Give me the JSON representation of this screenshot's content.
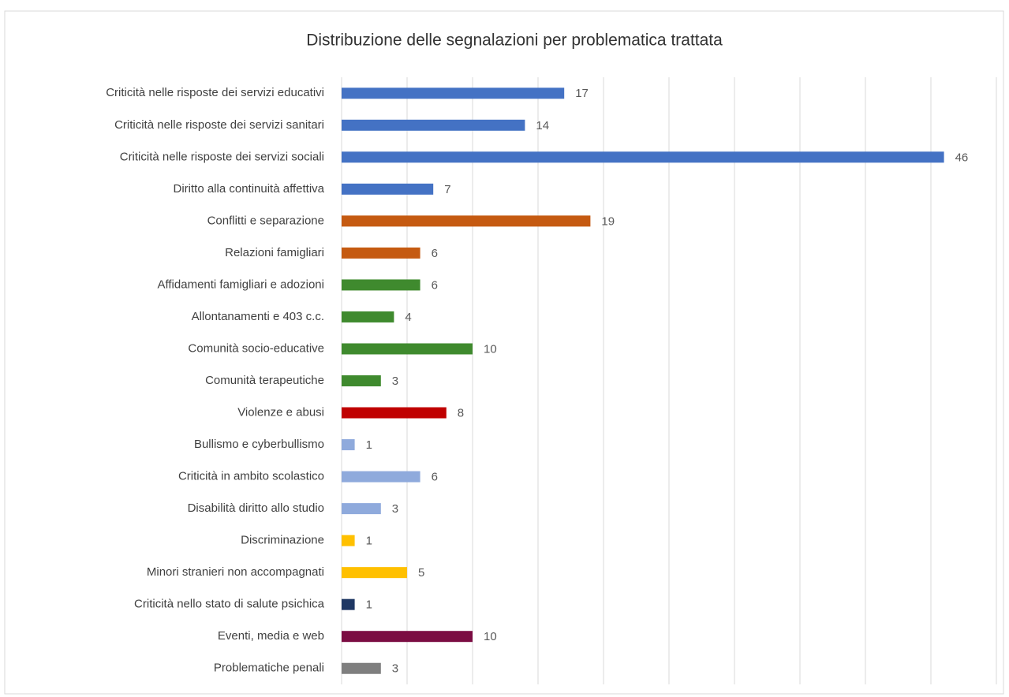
{
  "chart_data": {
    "type": "bar",
    "orientation": "horizontal",
    "title": "Distribuzione delle segnalazioni per problematica trattata",
    "categories": [
      "Criticità nelle risposte dei servizi educativi",
      "Criticità nelle risposte dei servizi sanitari",
      "Criticità nelle risposte dei servizi sociali",
      "Diritto alla continuità affettiva",
      "Conflitti e separazione",
      "Relazioni famigliari",
      "Affidamenti famigliari e adozioni",
      "Allontanamenti e 403 c.c.",
      "Comunità socio-educative",
      "Comunità terapeutiche",
      "Violenze e abusi",
      "Bullismo e cyberbullismo",
      "Criticità in ambito scolastico",
      "Disabilità diritto allo studio",
      "Discriminazione",
      "Minori stranieri non accompagnati",
      "Criticità nello stato di salute psichica",
      "Eventi, media e web",
      "Problematiche penali"
    ],
    "values": [
      17,
      14,
      46,
      7,
      19,
      6,
      6,
      4,
      10,
      3,
      8,
      1,
      6,
      3,
      1,
      5,
      1,
      10,
      3
    ],
    "colors": [
      "#4472c4",
      "#4472c4",
      "#4472c4",
      "#4472c4",
      "#c55a11",
      "#c55a11",
      "#3f8a2e",
      "#3f8a2e",
      "#3f8a2e",
      "#3f8a2e",
      "#c00000",
      "#8faadc",
      "#8faadc",
      "#8faadc",
      "#ffc000",
      "#ffc000",
      "#1f3864",
      "#7b0c42",
      "#7f7f7f"
    ],
    "xlim": [
      0,
      50
    ],
    "xticks": [
      0,
      5,
      10,
      15,
      20,
      25,
      30,
      35,
      40,
      45,
      50
    ],
    "grid": true
  }
}
